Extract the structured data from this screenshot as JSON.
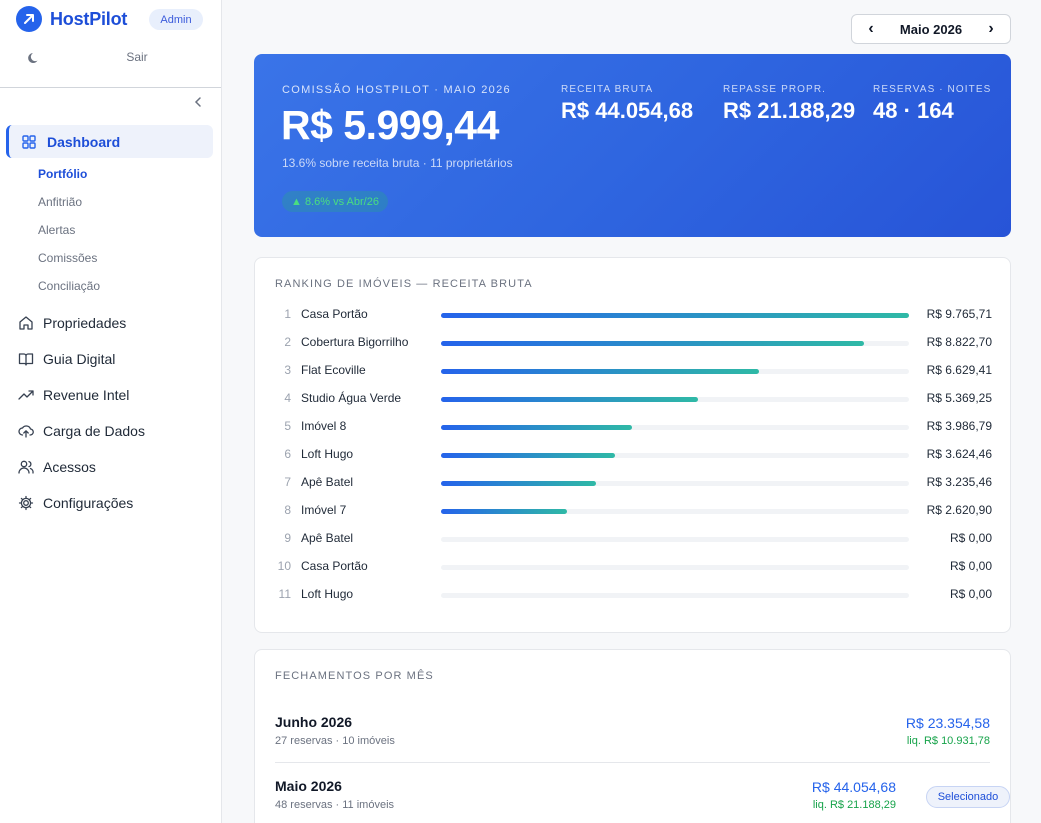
{
  "brand": {
    "name": "HostPilot",
    "role": "Admin"
  },
  "sidebar": {
    "logout": "Sair",
    "active": "Dashboard",
    "subitems": [
      {
        "label": "Portfólio",
        "active": true
      },
      {
        "label": "Anfitrião",
        "active": false
      },
      {
        "label": "Alertas",
        "active": false
      },
      {
        "label": "Comissões",
        "active": false
      },
      {
        "label": "Conciliação",
        "active": false
      }
    ],
    "items": [
      {
        "label": "Propriedades",
        "icon": "home-icon"
      },
      {
        "label": "Guia Digital",
        "icon": "book-icon"
      },
      {
        "label": "Revenue Intel",
        "icon": "trend-icon"
      },
      {
        "label": "Carga de Dados",
        "icon": "cloud-upload-icon"
      },
      {
        "label": "Acessos",
        "icon": "users-icon"
      },
      {
        "label": "Configurações",
        "icon": "gear-icon"
      }
    ]
  },
  "month_picker": {
    "label": "Maio 2026"
  },
  "hero": {
    "eyebrow": "COMISSÃO HOSTPILOT · MAIO 2026",
    "value": "R$ 5.999,44",
    "sub": "13.6% sobre receita bruta · 11 proprietários",
    "trend": "▲ 8.6% vs Abr/26",
    "kpis": [
      {
        "label": "RECEITA BRUTA",
        "value": "R$ 44.054,68"
      },
      {
        "label": "REPASSE PROPR.",
        "value": "R$ 21.188,29"
      },
      {
        "label": "RESERVAS · NOITES",
        "value": "48 · 164"
      }
    ]
  },
  "ranking": {
    "title": "RANKING DE IMÓVEIS — RECEITA BRUTA",
    "rows": [
      {
        "rank": "1",
        "name": "Casa Portão",
        "value": "R$ 9.765,71",
        "amount": 9765.71
      },
      {
        "rank": "2",
        "name": "Cobertura Bigorrilho",
        "value": "R$ 8.822,70",
        "amount": 8822.7
      },
      {
        "rank": "3",
        "name": "Flat Ecoville",
        "value": "R$ 6.629,41",
        "amount": 6629.41
      },
      {
        "rank": "4",
        "name": "Studio Água Verde",
        "value": "R$ 5.369,25",
        "amount": 5369.25
      },
      {
        "rank": "5",
        "name": "Imóvel 8",
        "value": "R$ 3.986,79",
        "amount": 3986.79
      },
      {
        "rank": "6",
        "name": "Loft Hugo",
        "value": "R$ 3.624,46",
        "amount": 3624.46
      },
      {
        "rank": "7",
        "name": "Apê Batel",
        "value": "R$ 3.235,46",
        "amount": 3235.46
      },
      {
        "rank": "8",
        "name": "Imóvel 7",
        "value": "R$ 2.620,90",
        "amount": 2620.9
      },
      {
        "rank": "9",
        "name": "Apê Batel",
        "value": "R$ 0,00",
        "amount": 0
      },
      {
        "rank": "10",
        "name": "Casa Portão",
        "value": "R$ 0,00",
        "amount": 0
      },
      {
        "rank": "11",
        "name": "Loft Hugo",
        "value": "R$ 0,00",
        "amount": 0
      }
    ]
  },
  "closings": {
    "title": "FECHAMENTOS POR MÊS",
    "rows": [
      {
        "month": "Junho 2026",
        "meta": "27 reservas · 10 imóveis",
        "total": "R$ 23.354,58",
        "net": "liq. R$ 10.931,78",
        "selected": false
      },
      {
        "month": "Maio 2026",
        "meta": "48 reservas · 11 imóveis",
        "total": "R$ 44.054,68",
        "net": "liq. R$ 21.188,29",
        "selected": true,
        "badge": "Selecionado"
      }
    ]
  }
}
